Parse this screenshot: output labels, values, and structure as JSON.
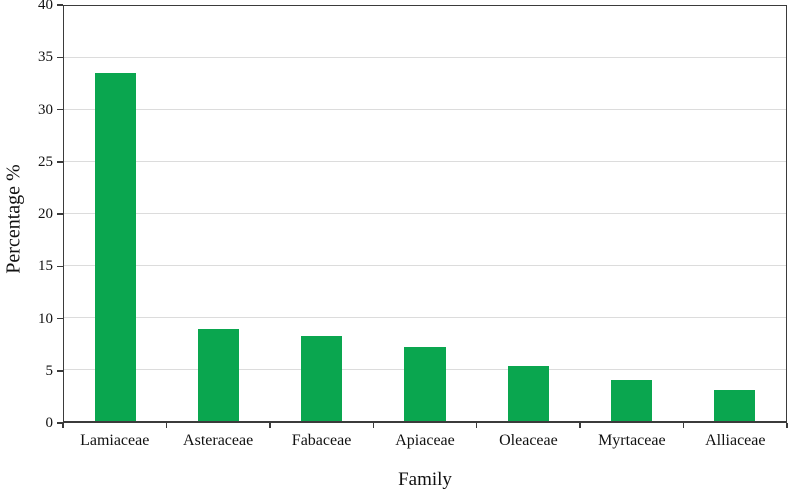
{
  "figure": {
    "background_color": "#ffffff",
    "text_color": "#111111"
  },
  "chart_data": {
    "type": "bar",
    "title": "",
    "categories": [
      "Lamiaceae",
      "Asteraceae",
      "Fabaceae",
      "Apiaceae",
      "Oleaceae",
      "Myrtaceae",
      "Alliaceae"
    ],
    "values": [
      33.5,
      8.9,
      8.2,
      7.1,
      5.3,
      4.0,
      3.0
    ],
    "xlabel": "Family",
    "ylabel": "Percentage %",
    "ylim": [
      0,
      40
    ],
    "yticks": [
      0,
      5,
      10,
      15,
      20,
      25,
      30,
      35,
      40
    ],
    "grid": true,
    "legend_position": "none",
    "bar_color": "#0aa64f",
    "axis_color": "#3b3b3b",
    "gridline_color": "#dcdcdc",
    "bar_gap_ratio": 0.6
  }
}
